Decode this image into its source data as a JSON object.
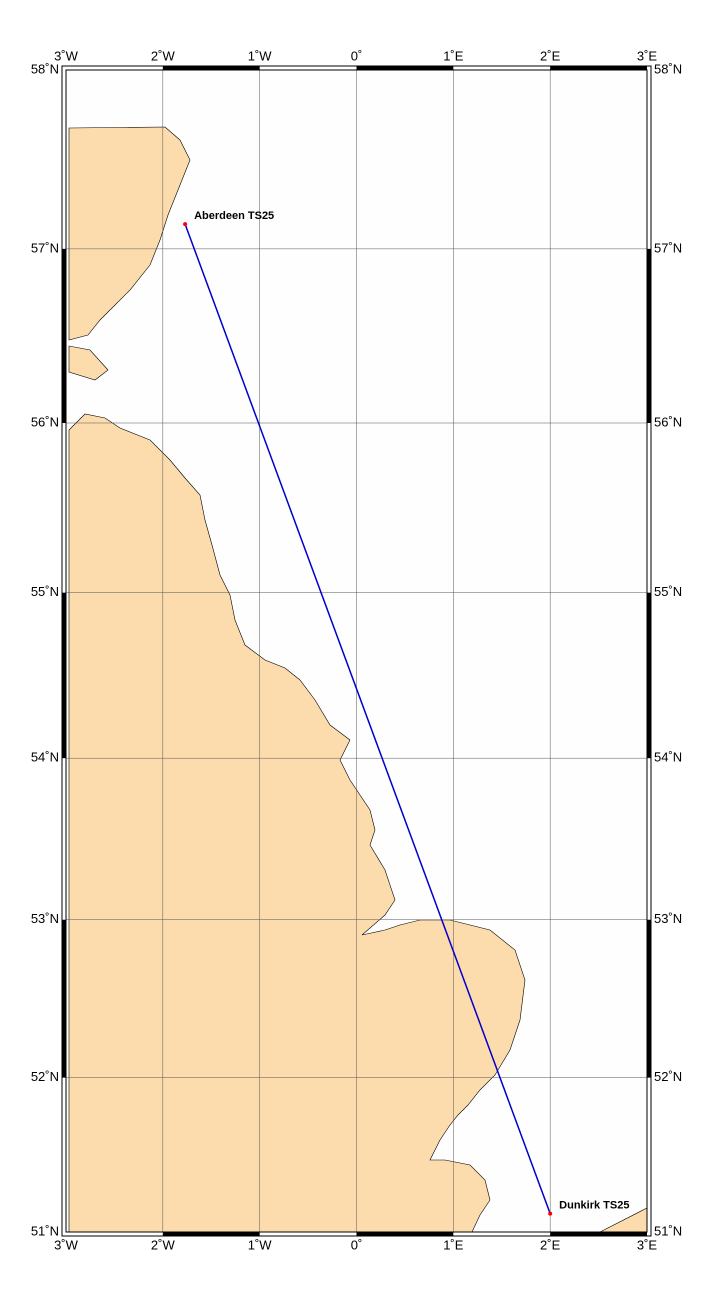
{
  "map": {
    "xlim": [
      -3,
      3
    ],
    "ylim": [
      51,
      58
    ],
    "xticks": [
      {
        "value": -3,
        "label": "3˚W"
      },
      {
        "value": -2,
        "label": "2˚W"
      },
      {
        "value": -1,
        "label": "1˚W"
      },
      {
        "value": 0,
        "label": "0˚"
      },
      {
        "value": 1,
        "label": "1˚E"
      },
      {
        "value": 2,
        "label": "2˚E"
      },
      {
        "value": 3,
        "label": "3˚E"
      }
    ],
    "yticks": [
      {
        "value": 58,
        "label": "58˚N"
      },
      {
        "value": 57,
        "label": "57˚N"
      },
      {
        "value": 56,
        "label": "56˚N"
      },
      {
        "value": 55,
        "label": "55˚N"
      },
      {
        "value": 54,
        "label": "54˚N"
      },
      {
        "value": 53,
        "label": "53˚N"
      },
      {
        "value": 52,
        "label": "52˚N"
      },
      {
        "value": 51,
        "label": "51˚N"
      }
    ],
    "stations": [
      {
        "name": "Aberdeen TS25",
        "lon": -1.77,
        "lat": 57.14
      },
      {
        "name": "Dunkirk TS25",
        "lon": 2.0,
        "lat": 51.12
      }
    ],
    "route_color": "#0000cc",
    "station_color": "#ff0000",
    "land_color": "#fcdcac",
    "grid": true
  }
}
